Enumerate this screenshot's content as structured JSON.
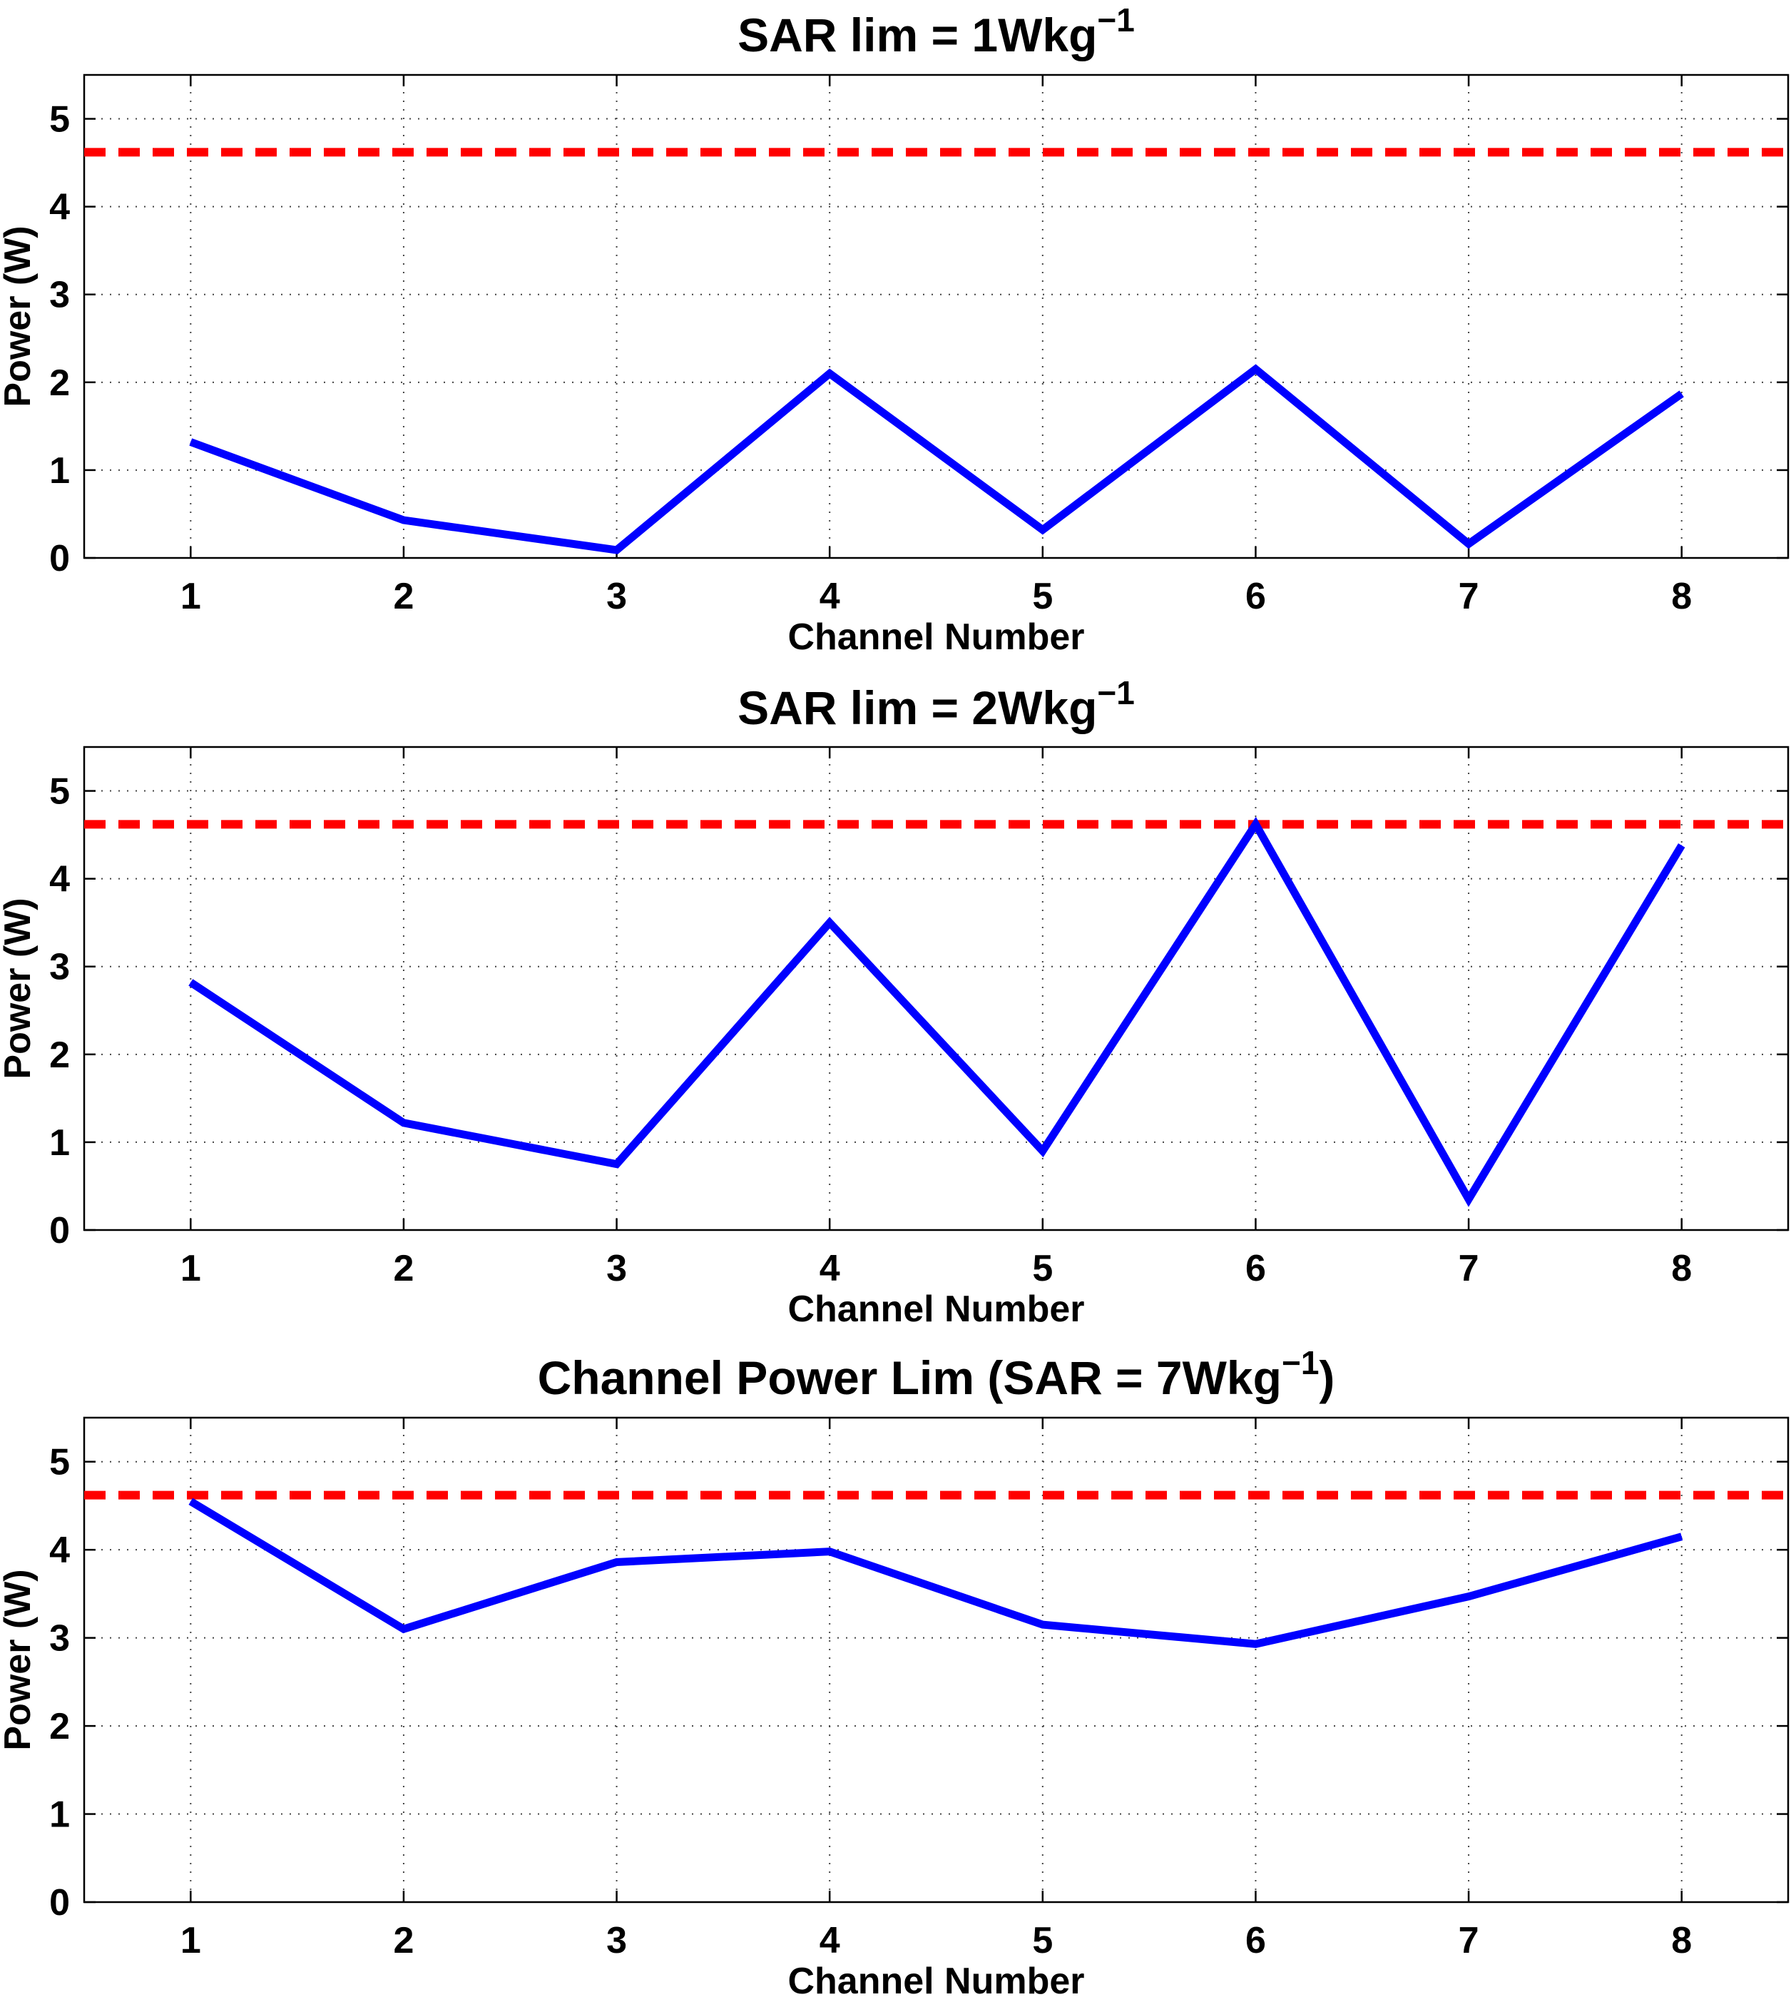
{
  "chart_data": [
    {
      "type": "line",
      "title": "SAR lim = 1Wkg",
      "title_superscript": "−1",
      "xlabel": "Channel Number",
      "ylabel": "Power (W)",
      "x": [
        1,
        2,
        3,
        4,
        5,
        6,
        7,
        8
      ],
      "xticks": [
        "1",
        "2",
        "3",
        "4",
        "5",
        "6",
        "7",
        "8"
      ],
      "yticks": [
        "0",
        "1",
        "2",
        "3",
        "4",
        "5"
      ],
      "xlim": [
        0.5,
        8.5
      ],
      "ylim": [
        0,
        5.5
      ],
      "grid": true,
      "series": [
        {
          "values": [
            1.32,
            0.43,
            0.09,
            2.1,
            0.32,
            2.15,
            0.16,
            1.87
          ],
          "color": "#0000ff",
          "style": "solid"
        }
      ],
      "reference_line": {
        "y": 4.62,
        "color": "#ff0000",
        "style": "dashed"
      }
    },
    {
      "type": "line",
      "title": "SAR lim = 2Wkg",
      "title_superscript": "−1",
      "xlabel": "Channel Number",
      "ylabel": "Power (W)",
      "x": [
        1,
        2,
        3,
        4,
        5,
        6,
        7,
        8
      ],
      "xticks": [
        "1",
        "2",
        "3",
        "4",
        "5",
        "6",
        "7",
        "8"
      ],
      "yticks": [
        "0",
        "1",
        "2",
        "3",
        "4",
        "5"
      ],
      "xlim": [
        0.5,
        8.5
      ],
      "ylim": [
        0,
        5.5
      ],
      "grid": true,
      "series": [
        {
          "values": [
            2.82,
            1.22,
            0.75,
            3.5,
            0.9,
            4.62,
            0.35,
            4.38
          ],
          "color": "#0000ff",
          "style": "solid"
        }
      ],
      "reference_line": {
        "y": 4.62,
        "color": "#ff0000",
        "style": "dashed"
      }
    },
    {
      "type": "line",
      "title": "Channel Power Lim (SAR = 7Wkg",
      "title_superscript": "−1",
      "title_suffix": ")",
      "xlabel": "Channel Number",
      "ylabel": "Power (W)",
      "x": [
        1,
        2,
        3,
        4,
        5,
        6,
        7,
        8
      ],
      "xticks": [
        "1",
        "2",
        "3",
        "4",
        "5",
        "6",
        "7",
        "8"
      ],
      "yticks": [
        "0",
        "1",
        "2",
        "3",
        "4",
        "5"
      ],
      "xlim": [
        0.5,
        8.5
      ],
      "ylim": [
        0,
        5.5
      ],
      "grid": true,
      "series": [
        {
          "values": [
            4.55,
            3.1,
            3.86,
            3.98,
            3.15,
            2.93,
            3.47,
            4.15
          ],
          "color": "#0000ff",
          "style": "solid"
        }
      ],
      "reference_line": {
        "y": 4.62,
        "color": "#ff0000",
        "style": "dashed"
      }
    }
  ]
}
